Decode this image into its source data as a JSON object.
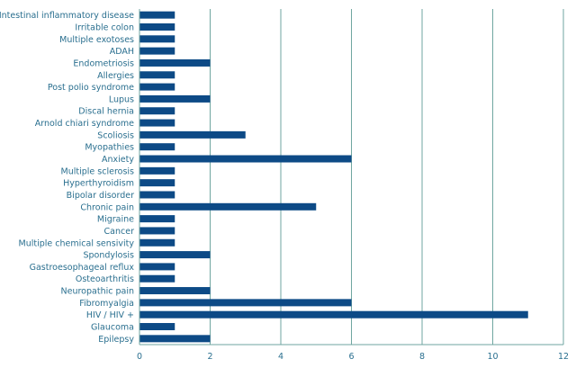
{
  "chart_data": {
    "type": "bar",
    "orientation": "horizontal",
    "categories": [
      "Intestinal inflammatory disease",
      "Irritable colon",
      "Multiple exotoses",
      "ADAH",
      "Endometriosis",
      "Allergies",
      "Post polio syndrome",
      "Lupus",
      "Discal hernia",
      "Arnold chiari syndrome",
      "Scoliosis",
      "Myopathies",
      "Anxiety",
      "Multiple sclerosis",
      "Hyperthyroidism",
      "Bipolar disorder",
      "Chronic pain",
      "Migraine",
      "Cancer",
      "Multiple chemical sensivity",
      "Spondylosis",
      "Gastroesophageal reflux",
      "Osteoarthritis",
      "Neuropathic pain",
      "Fibromyalgia",
      "HIV / HIV +",
      "Glaucoma",
      "Epilepsy"
    ],
    "values": [
      1,
      1,
      1,
      1,
      2,
      1,
      1,
      2,
      1,
      1,
      3,
      1,
      6,
      1,
      1,
      1,
      5,
      1,
      1,
      1,
      2,
      1,
      1,
      2,
      6,
      11,
      1,
      2
    ],
    "xlim": [
      0,
      12
    ],
    "xticks": [
      "0",
      "2",
      "4",
      "6",
      "8",
      "10",
      "12"
    ],
    "title": "",
    "xlabel": "",
    "ylabel": "",
    "grid": "vertical",
    "legend": "none",
    "colors": {
      "bar": "#0d4a86",
      "grid": "#6fa6a0",
      "label": "#2a6f8f"
    }
  }
}
